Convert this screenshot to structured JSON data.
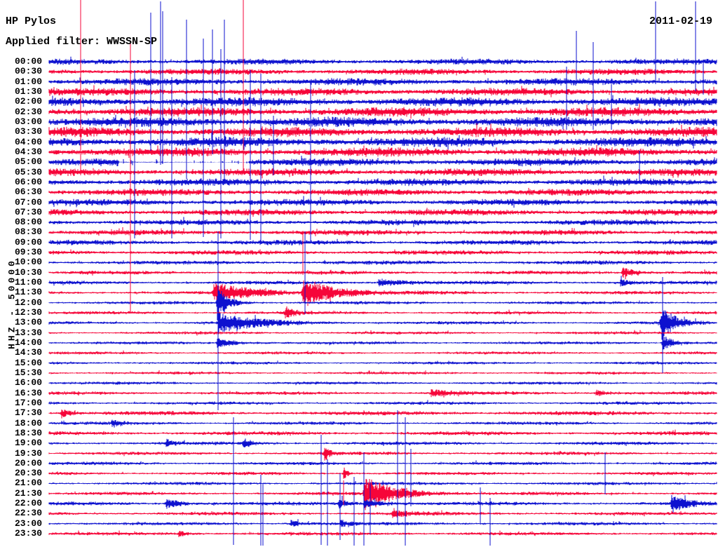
{
  "header": {
    "station": "HP Pylos",
    "filter": "Applied filter: WWSSN-SP",
    "date": "2011-02-19"
  },
  "axis": {
    "scale_label": "HHZ - 50000"
  },
  "colors": {
    "blue": "#0d11cf",
    "red": "#f60539",
    "text": "#000000",
    "background": "#ffffff"
  },
  "chart_data": {
    "type": "line",
    "subtype": "helicorder-seismogram",
    "title": "HP Pylos",
    "station": "HP Pylos",
    "channel_scale": "HHZ - 50000",
    "filter": "WWSSN-SP",
    "date": "2011-02-19",
    "minutes_per_row": 30,
    "row_color_rule": "hour lines blue, half-hour lines red, alternating",
    "rows_format": "t=start time label, c=trace color key, a=background noise half-amplitude in px",
    "rows": [
      {
        "t": "00:00",
        "c": "b",
        "a": 4.0
      },
      {
        "t": "00:30",
        "c": "r",
        "a": 4.2
      },
      {
        "t": "01:00",
        "c": "b",
        "a": 4.8
      },
      {
        "t": "01:30",
        "c": "r",
        "a": 5.2
      },
      {
        "t": "02:00",
        "c": "b",
        "a": 6.0
      },
      {
        "t": "02:30",
        "c": "r",
        "a": 6.2
      },
      {
        "t": "03:00",
        "c": "b",
        "a": 6.5
      },
      {
        "t": "03:30",
        "c": "r",
        "a": 6.6
      },
      {
        "t": "04:00",
        "c": "b",
        "a": 6.6
      },
      {
        "t": "04:30",
        "c": "r",
        "a": 6.2
      },
      {
        "t": "05:00",
        "c": "b",
        "a": 5.2
      },
      {
        "t": "05:30",
        "c": "r",
        "a": 5.0
      },
      {
        "t": "06:00",
        "c": "b",
        "a": 4.8
      },
      {
        "t": "06:30",
        "c": "r",
        "a": 4.6
      },
      {
        "t": "07:00",
        "c": "b",
        "a": 4.4
      },
      {
        "t": "07:30",
        "c": "r",
        "a": 4.2
      },
      {
        "t": "08:00",
        "c": "b",
        "a": 3.8
      },
      {
        "t": "08:30",
        "c": "r",
        "a": 3.6
      },
      {
        "t": "09:00",
        "c": "b",
        "a": 3.4
      },
      {
        "t": "09:30",
        "c": "r",
        "a": 3.2
      },
      {
        "t": "10:00",
        "c": "b",
        "a": 2.8
      },
      {
        "t": "10:30",
        "c": "r",
        "a": 2.6
      },
      {
        "t": "11:00",
        "c": "b",
        "a": 2.5
      },
      {
        "t": "11:30",
        "c": "r",
        "a": 2.4
      },
      {
        "t": "12:00",
        "c": "b",
        "a": 2.2
      },
      {
        "t": "12:30",
        "c": "r",
        "a": 2.2
      },
      {
        "t": "13:00",
        "c": "b",
        "a": 2.2
      },
      {
        "t": "13:30",
        "c": "r",
        "a": 2.1
      },
      {
        "t": "14:00",
        "c": "b",
        "a": 2.1
      },
      {
        "t": "14:30",
        "c": "r",
        "a": 2.0
      },
      {
        "t": "15:00",
        "c": "b",
        "a": 2.0
      },
      {
        "t": "15:30",
        "c": "r",
        "a": 2.0
      },
      {
        "t": "16:00",
        "c": "b",
        "a": 2.1
      },
      {
        "t": "16:30",
        "c": "r",
        "a": 2.4
      },
      {
        "t": "17:00",
        "c": "b",
        "a": 2.2
      },
      {
        "t": "17:30",
        "c": "r",
        "a": 2.9
      },
      {
        "t": "18:00",
        "c": "b",
        "a": 2.3
      },
      {
        "t": "18:30",
        "c": "r",
        "a": 2.7
      },
      {
        "t": "19:00",
        "c": "b",
        "a": 2.4
      },
      {
        "t": "19:30",
        "c": "r",
        "a": 2.3
      },
      {
        "t": "20:00",
        "c": "b",
        "a": 2.3
      },
      {
        "t": "20:30",
        "c": "r",
        "a": 2.2
      },
      {
        "t": "21:00",
        "c": "b",
        "a": 2.2
      },
      {
        "t": "21:30",
        "c": "r",
        "a": 2.3
      },
      {
        "t": "22:00",
        "c": "b",
        "a": 2.5
      },
      {
        "t": "22:30",
        "c": "r",
        "a": 2.4
      },
      {
        "t": "23:00",
        "c": "b",
        "a": 2.3
      },
      {
        "t": "23:30",
        "c": "r",
        "a": 2.4
      }
    ],
    "events_format": "[row_index, x_px, peak_half_amplitude_px, decay_length_px]",
    "events": [
      [
        21,
        888,
        6,
        20
      ],
      [
        22,
        540,
        5,
        35
      ],
      [
        22,
        885,
        4,
        15
      ],
      [
        23,
        305,
        12,
        55
      ],
      [
        23,
        432,
        20,
        40
      ],
      [
        24,
        310,
        24,
        14
      ],
      [
        25,
        407,
        8,
        12
      ],
      [
        26,
        312,
        13,
        50
      ],
      [
        26,
        943,
        26,
        16
      ],
      [
        28,
        310,
        6,
        25
      ],
      [
        28,
        945,
        11,
        14
      ],
      [
        33,
        615,
        4,
        30
      ],
      [
        33,
        850,
        4,
        18
      ],
      [
        35,
        88,
        6,
        12
      ],
      [
        36,
        160,
        5,
        10
      ],
      [
        38,
        237,
        5,
        8
      ],
      [
        38,
        347,
        7,
        10
      ],
      [
        39,
        463,
        12,
        6
      ],
      [
        41,
        490,
        9,
        5
      ],
      [
        43,
        520,
        23,
        40
      ],
      [
        44,
        237,
        7,
        18
      ],
      [
        44,
        483,
        6,
        12
      ],
      [
        44,
        520,
        5,
        30
      ],
      [
        44,
        958,
        12,
        20
      ],
      [
        45,
        560,
        4,
        25
      ],
      [
        46,
        415,
        4,
        15
      ],
      [
        46,
        485,
        5,
        10
      ],
      [
        47,
        255,
        3.5,
        12
      ]
    ],
    "spikes_format": "[x_px, y1_px, y2_px, color_key]",
    "spikes": [
      [
        115,
        0,
        250,
        "r"
      ],
      [
        186,
        60,
        445,
        "r"
      ],
      [
        192,
        100,
        340,
        "b"
      ],
      [
        215,
        18,
        215,
        "b"
      ],
      [
        229,
        2,
        235,
        "b"
      ],
      [
        232,
        16,
        230,
        "b"
      ],
      [
        245,
        110,
        340,
        "b"
      ],
      [
        266,
        28,
        255,
        "b"
      ],
      [
        290,
        55,
        338,
        "b"
      ],
      [
        303,
        42,
        220,
        "b"
      ],
      [
        311,
        330,
        585,
        "b"
      ],
      [
        315,
        70,
        340,
        "b"
      ],
      [
        320,
        28,
        262,
        "b"
      ],
      [
        333,
        595,
        777,
        "b"
      ],
      [
        347,
        0,
        242,
        "r"
      ],
      [
        357,
        100,
        342,
        "b"
      ],
      [
        372,
        105,
        345,
        "b"
      ],
      [
        372,
        677,
        778,
        "b"
      ],
      [
        375,
        690,
        778,
        "b"
      ],
      [
        390,
        165,
        250,
        "b"
      ],
      [
        432,
        332,
        392,
        "r"
      ],
      [
        435,
        330,
        448,
        "b"
      ],
      [
        443,
        120,
        345,
        "b"
      ],
      [
        458,
        620,
        777,
        "b"
      ],
      [
        467,
        655,
        778,
        "b"
      ],
      [
        485,
        675,
        770,
        "b"
      ],
      [
        490,
        685,
        720,
        "r"
      ],
      [
        505,
        680,
        778,
        "b"
      ],
      [
        519,
        645,
        778,
        "b"
      ],
      [
        528,
        690,
        762,
        "b"
      ],
      [
        567,
        585,
        748,
        "b"
      ],
      [
        578,
        595,
        778,
        "b"
      ],
      [
        586,
        640,
        722,
        "b"
      ],
      [
        685,
        695,
        748,
        "b"
      ],
      [
        699,
        710,
        778,
        "b"
      ],
      [
        808,
        95,
        185,
        "b"
      ],
      [
        822,
        44,
        120,
        "b"
      ],
      [
        846,
        60,
        185,
        "b"
      ],
      [
        863,
        645,
        705,
        "b"
      ],
      [
        872,
        120,
        185,
        "b"
      ],
      [
        912,
        215,
        262,
        "b"
      ],
      [
        935,
        2,
        120,
        "b"
      ],
      [
        945,
        395,
        532,
        "b"
      ],
      [
        992,
        2,
        130,
        "b"
      ],
      [
        1003,
        85,
        135,
        "b"
      ]
    ],
    "gaps_format": "[row_index, x1_px, x2_px] low-signal dropout region",
    "gaps": [
      [
        10,
        170,
        355
      ]
    ]
  }
}
